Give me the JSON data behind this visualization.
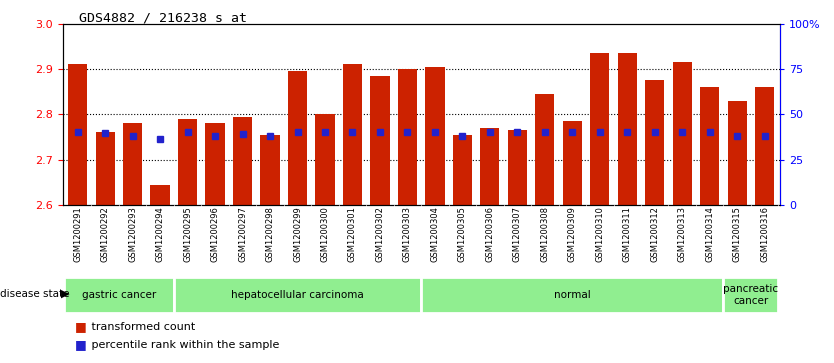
{
  "title": "GDS4882 / 216238_s_at",
  "samples": [
    "GSM1200291",
    "GSM1200292",
    "GSM1200293",
    "GSM1200294",
    "GSM1200295",
    "GSM1200296",
    "GSM1200297",
    "GSM1200298",
    "GSM1200299",
    "GSM1200300",
    "GSM1200301",
    "GSM1200302",
    "GSM1200303",
    "GSM1200304",
    "GSM1200305",
    "GSM1200306",
    "GSM1200307",
    "GSM1200308",
    "GSM1200309",
    "GSM1200310",
    "GSM1200311",
    "GSM1200312",
    "GSM1200313",
    "GSM1200314",
    "GSM1200315",
    "GSM1200316"
  ],
  "transformed_count": [
    2.91,
    2.76,
    2.78,
    2.645,
    2.79,
    2.78,
    2.795,
    2.755,
    2.895,
    2.8,
    2.91,
    2.885,
    2.9,
    2.905,
    2.755,
    2.77,
    2.765,
    2.845,
    2.785,
    2.935,
    2.935,
    2.875,
    2.915,
    2.86,
    2.83,
    2.86
  ],
  "percentile_values": [
    2.762,
    2.758,
    2.752,
    2.745,
    2.762,
    2.752,
    2.757,
    2.752,
    2.762,
    2.762,
    2.762,
    2.762,
    2.762,
    2.762,
    2.752,
    2.762,
    2.762,
    2.762,
    2.762,
    2.762,
    2.762,
    2.762,
    2.762,
    2.762,
    2.752,
    2.752
  ],
  "disease_groups": [
    {
      "label": "gastric cancer",
      "start": 0,
      "end": 3
    },
    {
      "label": "hepatocellular carcinoma",
      "start": 4,
      "end": 12
    },
    {
      "label": "normal",
      "start": 13,
      "end": 23
    },
    {
      "label": "pancreatic\ncancer",
      "start": 24,
      "end": 25
    }
  ],
  "bar_color": "#CC2200",
  "dot_color": "#2222CC",
  "ylim_left": [
    2.6,
    3.0
  ],
  "yticks_left": [
    2.6,
    2.7,
    2.8,
    2.9,
    3.0
  ],
  "yticks_right": [
    0,
    25,
    50,
    75,
    100
  ],
  "ytick_labels_right": [
    "0",
    "25",
    "50",
    "75",
    "100%"
  ],
  "background_color": "#ffffff",
  "green_color": "#90EE90",
  "bar_width": 0.7
}
